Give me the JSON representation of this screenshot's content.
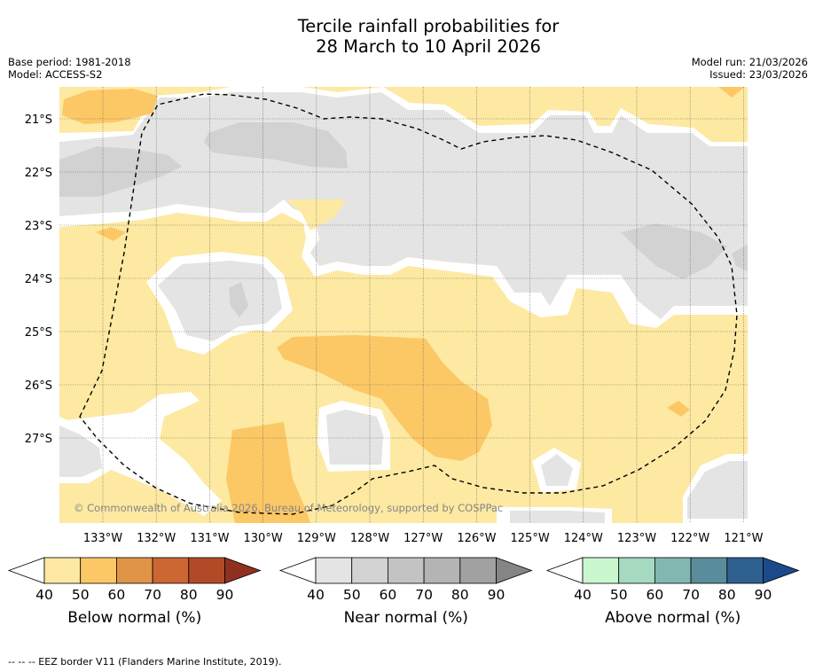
{
  "title_line1": "Tercile rainfall probabilities for",
  "title_line2": "28 March to 10 April 2026",
  "meta_left": {
    "line1": "Base period: 1981-2018",
    "line2": "Model: ACCESS-S2"
  },
  "meta_right": {
    "line1": "Model run: 21/03/2026",
    "line2": "Issued: 23/03/2026"
  },
  "latitude_labels": [
    "21°S",
    "22°S",
    "23°S",
    "24°S",
    "25°S",
    "26°S",
    "27°S"
  ],
  "longitude_labels": [
    "133°W",
    "132°W",
    "131°W",
    "130°W",
    "129°W",
    "128°W",
    "127°W",
    "126°W",
    "125°W",
    "124°W",
    "123°W",
    "122°W",
    "121°W"
  ],
  "copyright": "© Commonwealth of Australia 2026, Bureau of Meteorology, supported by COSPPac",
  "colorbars": [
    {
      "name": "below",
      "title": "Below normal (%)",
      "ticks": [
        "40",
        "50",
        "60",
        "70",
        "80",
        "90"
      ],
      "colors": [
        "#ffffff",
        "#fde9a2",
        "#fcc866",
        "#e09448",
        "#cc6633",
        "#b24a28",
        "#903020"
      ]
    },
    {
      "name": "near",
      "title": "Near normal (%)",
      "ticks": [
        "40",
        "50",
        "60",
        "70",
        "80",
        "90"
      ],
      "colors": [
        "#ffffff",
        "#e4e4e4",
        "#d2d2d2",
        "#c3c3c3",
        "#b4b4b4",
        "#a1a1a1",
        "#858585"
      ]
    },
    {
      "name": "above",
      "title": "Above normal (%)",
      "ticks": [
        "40",
        "50",
        "60",
        "70",
        "80",
        "90"
      ],
      "colors": [
        "#ffffff",
        "#cbf7cf",
        "#a5d9c0",
        "#82b7b1",
        "#5a8d9b",
        "#2e6090",
        "#1b4a8a"
      ]
    }
  ],
  "footer": "--  --  -- EEZ border V11 (Flanders Marine Institute, 2019).",
  "colors": {
    "yellow": "#fde9a2",
    "orange": "#fcc866",
    "gray": "#e4e4e4",
    "gray_dark": "#d2d2d2"
  }
}
